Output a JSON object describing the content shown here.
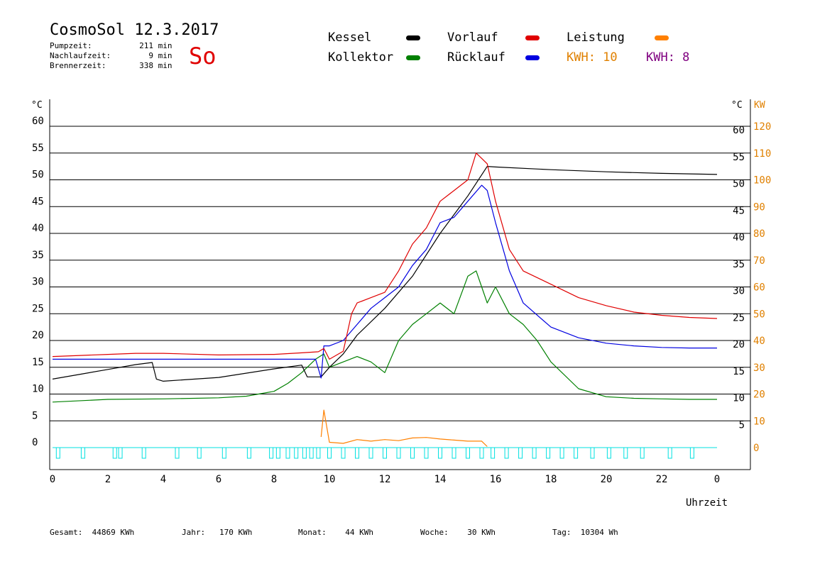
{
  "header": {
    "title": "CosmoSol 12.3.2017",
    "day": "So",
    "info": [
      {
        "label": "Pumpzeit:",
        "value": "211",
        "unit": "min"
      },
      {
        "label": "Nachlaufzeit:",
        "value": "9",
        "unit": "min"
      },
      {
        "label": "Brennerzeit:",
        "value": "338",
        "unit": "min"
      }
    ]
  },
  "legend": {
    "items": [
      {
        "label": "Kessel",
        "color": "#000000"
      },
      {
        "label": "Vorlauf",
        "color": "#e00000"
      },
      {
        "label": "Leistung",
        "color": "#ff8000"
      },
      {
        "label": "Kollektor",
        "color": "#008000"
      },
      {
        "label": "Rücklauf",
        "color": "#0000e0"
      }
    ],
    "kwh_orange": "KWH: 10",
    "kwh_purple": "KWH: 8"
  },
  "colors": {
    "orange_text": "#e08000",
    "purple_text": "#800080",
    "pump": "#00e0e0"
  },
  "footer": {
    "gesamt_label": "Gesamt:",
    "gesamt_value": "44869 KWh",
    "jahr_label": "Jahr:",
    "jahr_value": "170 KWh",
    "monat_label": "Monat:",
    "monat_value": "44 KWh",
    "woche_label": "Woche:",
    "woche_value": "30 KWh",
    "tag_label": "Tag:",
    "tag_value": "10304 Wh"
  },
  "chart_data": {
    "type": "line",
    "xlabel": "Uhrzeit",
    "x_ticks": [
      "0",
      "2",
      "4",
      "6",
      "8",
      "10",
      "12",
      "14",
      "16",
      "18",
      "20",
      "22",
      "0"
    ],
    "xlim": [
      0,
      24
    ],
    "ylabel_left": "°C",
    "ylabel_right_temp": "°C",
    "ylabel_right_power": "KW",
    "ylim": [
      0,
      60
    ],
    "y_ticks_left": [
      "0",
      "5",
      "10",
      "15",
      "20",
      "25",
      "30",
      "35",
      "40",
      "45",
      "50",
      "55",
      "60"
    ],
    "y_ticks_right_temp": [
      "5",
      "10",
      "15",
      "20",
      "25",
      "30",
      "35",
      "40",
      "45",
      "50",
      "55",
      "60"
    ],
    "y_ticks_right_power": [
      "0",
      "10",
      "20",
      "30",
      "40",
      "50",
      "60",
      "70",
      "80",
      "90",
      "100",
      "110",
      "120"
    ],
    "grid": "horizontal",
    "series": [
      {
        "name": "Kessel",
        "color": "#000000",
        "x": [
          0,
          1,
          2,
          3,
          3.6,
          3.75,
          4,
          6,
          8,
          9,
          9.2,
          9.7,
          10,
          10.5,
          11,
          12,
          13,
          14,
          15,
          15.7,
          16,
          18,
          20,
          22,
          24
        ],
        "y": [
          12.8,
          13.7,
          14.6,
          15.5,
          15.9,
          12.8,
          12.4,
          13.1,
          14.7,
          15.4,
          13.2,
          13.2,
          15,
          17.5,
          21,
          26,
          32,
          40,
          47,
          52.5,
          52.4,
          51.9,
          51.5,
          51.2,
          51
        ]
      },
      {
        "name": "Vorlauf",
        "color": "#e00000",
        "x": [
          0,
          1,
          2,
          3,
          4,
          6,
          8,
          9,
          9.6,
          9.8,
          10,
          10.5,
          10.8,
          11,
          11.5,
          12,
          12.5,
          13,
          13.5,
          14,
          14.5,
          15,
          15.3,
          15.5,
          15.7,
          16,
          16.5,
          17,
          18,
          19,
          20,
          21,
          22,
          23,
          24
        ],
        "y": [
          17,
          17.2,
          17.4,
          17.6,
          17.6,
          17.3,
          17.4,
          17.7,
          17.9,
          18.5,
          16.5,
          18,
          25,
          27,
          28,
          29,
          33,
          38,
          41,
          46,
          48,
          50,
          55,
          54,
          53,
          46,
          37,
          33,
          30.5,
          28,
          26.5,
          25.3,
          24.7,
          24.3,
          24.1
        ]
      },
      {
        "name": "Rücklauf",
        "color": "#0000e0",
        "x": [
          0,
          2,
          4,
          6,
          8,
          9.5,
          9.7,
          9.8,
          10,
          10.5,
          11,
          11.5,
          12,
          12.5,
          13,
          13.5,
          14,
          14.5,
          15,
          15.5,
          15.7,
          16,
          16.5,
          17,
          18,
          19,
          20,
          21,
          22,
          23,
          24
        ],
        "y": [
          16.5,
          16.5,
          16.5,
          16.5,
          16.5,
          16.5,
          13,
          19,
          19,
          20,
          23,
          26,
          28,
          30,
          34,
          37,
          42,
          43,
          46,
          49,
          48,
          42,
          33,
          27,
          22.5,
          20.5,
          19.5,
          19,
          18.7,
          18.6,
          18.6
        ]
      },
      {
        "name": "Kollektor",
        "color": "#008000",
        "x": [
          0,
          2,
          4,
          6,
          7,
          8,
          8.5,
          9,
          9.5,
          9.8,
          10,
          10.5,
          11,
          11.5,
          12,
          12.5,
          13,
          13.5,
          14,
          14.5,
          15,
          15.3,
          15.5,
          15.7,
          16,
          16.5,
          17,
          17.5,
          18,
          19,
          20,
          21,
          22,
          23,
          24
        ],
        "y": [
          8.5,
          9,
          9.1,
          9.3,
          9.6,
          10.5,
          12,
          14,
          16.5,
          17.5,
          15,
          16,
          17,
          16,
          14,
          20,
          23,
          25,
          27,
          25,
          32,
          33,
          30,
          27,
          30,
          25,
          23,
          20,
          16,
          11,
          9.5,
          9.2,
          9.1,
          9,
          9
        ]
      },
      {
        "name": "Leistung",
        "color": "#ff8000",
        "x": [
          9.7,
          9.8,
          10,
          10.5,
          11,
          11.5,
          12,
          12.5,
          13,
          13.5,
          14,
          14.5,
          15,
          15.5,
          15.7
        ],
        "y": [
          2,
          7,
          1,
          0.8,
          1.5,
          1.2,
          1.5,
          1.3,
          1.8,
          1.9,
          1.6,
          1.4,
          1.2,
          1.2,
          0.2
        ]
      }
    ],
    "pump_marks_x": [
      0.2,
      1.1,
      2.25,
      2.45,
      3.3,
      4.5,
      5.3,
      6.2,
      7.1,
      7.9,
      8.15,
      8.5,
      8.8,
      9.1,
      9.35,
      9.6,
      10,
      10.5,
      11,
      11.5,
      12,
      12.5,
      13,
      13.5,
      14,
      14.5,
      15,
      15.5,
      15.9,
      16.4,
      16.9,
      17.4,
      17.9,
      18.4,
      18.9,
      19.5,
      20.1,
      20.7,
      21.3,
      22.3,
      23.1
    ]
  }
}
